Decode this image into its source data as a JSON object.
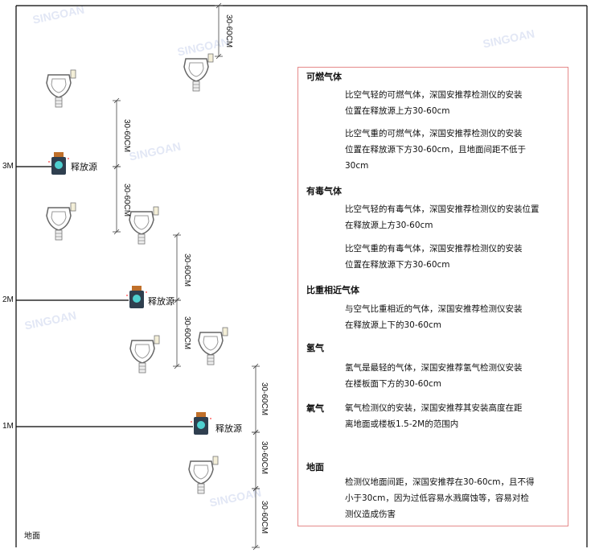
{
  "levels": {
    "l3": "3M",
    "l2": "2M",
    "l1": "1M",
    "ground": "地面"
  },
  "dimension_label": "30-60CM",
  "source_label": "释放源",
  "watermark": "SINGOAN 深国安",
  "colors": {
    "panel_border": "#e58a8a",
    "source_body": "#2f3f4f",
    "source_cap": "#c0702a",
    "source_face": "#4fd0d0"
  },
  "panel": {
    "sections": [
      {
        "title": "可燃气体",
        "paragraphs": [
          [
            "比空气轻的可燃气体，深国安推荐检测仪的安装",
            "位置在释放源上方30-60cm"
          ],
          [
            "比空气重的可燃气体，深国安推荐检测仪的安装",
            "位置在释放源下方30-60cm，且地面间距不低于",
            "30cm"
          ]
        ]
      },
      {
        "title": "有毒气体",
        "paragraphs": [
          [
            "比空气轻的有毒气体，深国安推荐检测仪的安装位置",
            "在释放源上方30-60cm"
          ],
          [
            "比空气重的有毒气体，深国安推荐检测仪的安装",
            "位置在释放源下方30-60cm"
          ]
        ]
      },
      {
        "title": "比重相近气体",
        "paragraphs": [
          [
            "与空气比重相近的气体，深国安推荐检测仪安装",
            "在释放源上下的30-60cm"
          ]
        ]
      },
      {
        "title": "氢气",
        "paragraphs": [
          [
            "氢气是最轻的气体，深国安推荐氢气检测仪安装",
            "在楼板面下方的30-60cm"
          ]
        ]
      },
      {
        "title": "氧气",
        "paragraphs": [
          [
            "氧气检测仪的安装，深国安推荐其安装高度在距",
            "离地面或楼板1.5-2M的范围内"
          ]
        ]
      },
      {
        "title": "地面",
        "paragraphs": [
          [
            "检测仪地面间距，深国安推荐在30-60cm，且不得",
            "小于30cm，因为过低容易水溅腐蚀等，容易对检",
            "测仪造成伤害"
          ]
        ]
      }
    ]
  }
}
